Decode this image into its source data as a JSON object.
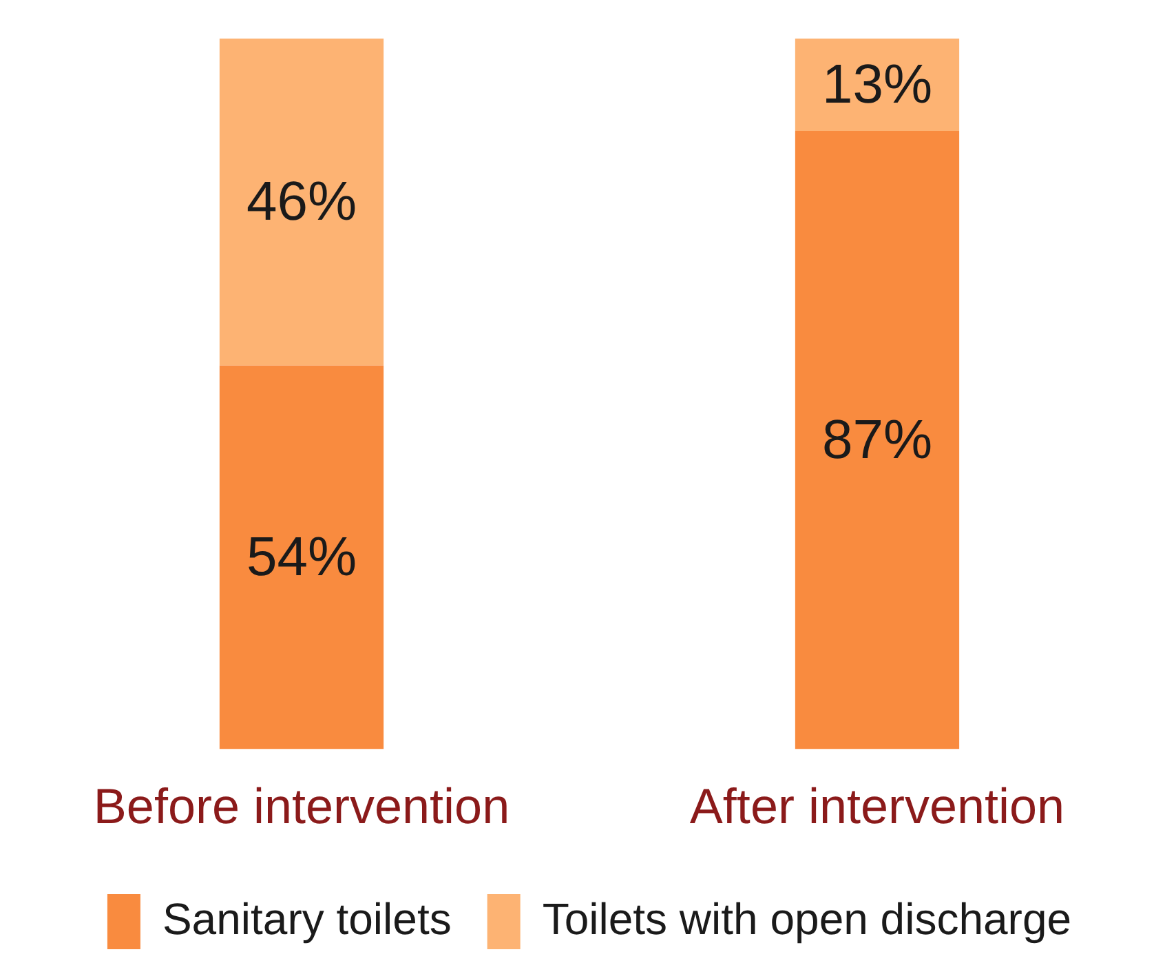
{
  "chart_data": {
    "type": "bar",
    "stacked": true,
    "legend": "bottom",
    "categories": [
      "Before intervention",
      "After intervention"
    ],
    "series": [
      {
        "name": "Sanitary toilets",
        "color": "#f98b3f",
        "values": [
          54,
          87
        ],
        "value_labels": [
          "54%",
          "87%"
        ]
      },
      {
        "name": "Toilets with open discharge",
        "color": "#fdb373",
        "values": [
          46,
          13
        ],
        "value_labels": [
          "46%",
          "13%"
        ]
      }
    ]
  }
}
